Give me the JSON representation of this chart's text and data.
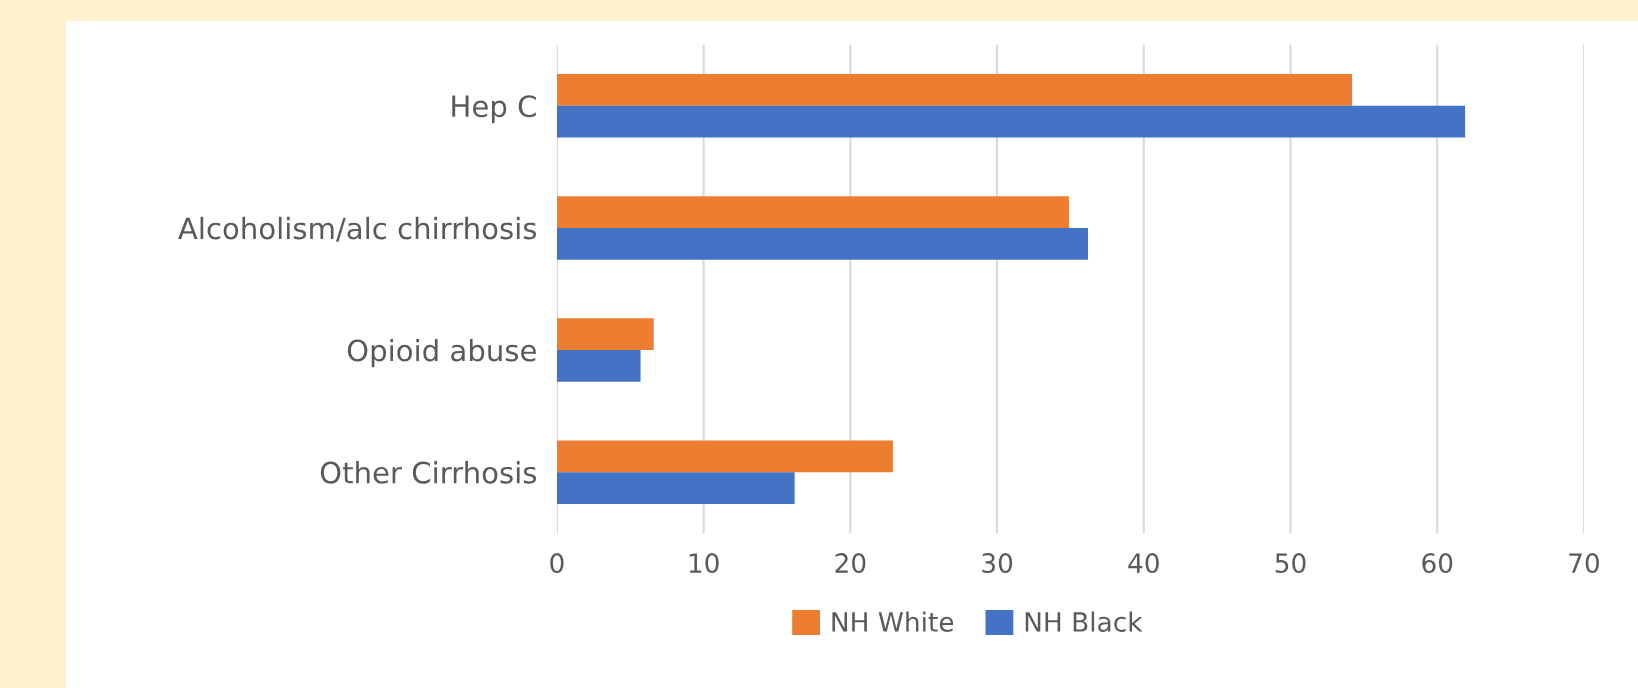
{
  "chart_data": {
    "type": "bar",
    "orientation": "horizontal",
    "categories": [
      "Hep C",
      "Alcoholism/alc chirrhosis",
      "Opioid abuse",
      "Other Cirrhosis"
    ],
    "series": [
      {
        "name": "NH White",
        "color": "#ed7d31",
        "values": [
          54.2,
          34.9,
          6.6,
          22.9
        ]
      },
      {
        "name": "NH Black",
        "color": "#4472c4",
        "values": [
          61.9,
          36.2,
          5.7,
          16.2
        ]
      }
    ],
    "xlim": [
      0,
      70
    ],
    "xticks": [
      0,
      10,
      20,
      30,
      40,
      50,
      60,
      70
    ],
    "grid": "x",
    "legend": "bottom"
  }
}
